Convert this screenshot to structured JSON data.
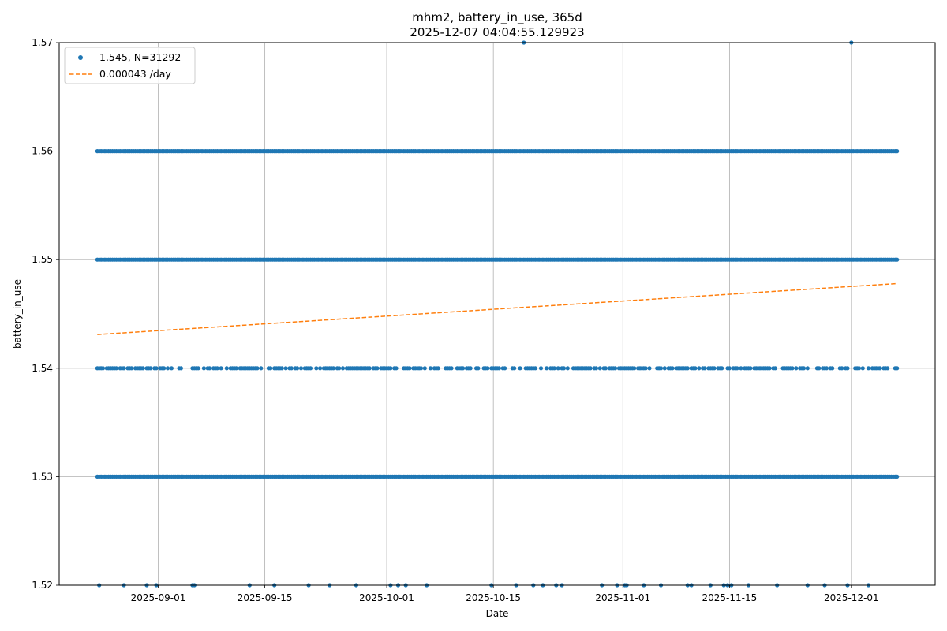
{
  "chart_data": {
    "type": "scatter",
    "title": "mhm2, battery_in_use, 365d",
    "subtitle": "2025-12-07 04:04:55.129923",
    "xlabel": "Date",
    "ylabel": "battery_in_use",
    "xlim": [
      "2025-08-19",
      "2025-12-12"
    ],
    "ylim": [
      1.52,
      1.57
    ],
    "x_ticks": [
      "2025-09-01",
      "2025-09-15",
      "2025-10-01",
      "2025-10-15",
      "2025-11-01",
      "2025-11-15",
      "2025-12-01"
    ],
    "y_ticks": [
      "1.52",
      "1.53",
      "1.54",
      "1.55",
      "1.56",
      "1.57"
    ],
    "grid": true,
    "legend_position": "top-left",
    "data_start": "2025-08-24",
    "data_end": "2025-12-07",
    "series": [
      {
        "name": "1.545, N=31292",
        "kind": "scatter",
        "color": "#1f77b4",
        "levels": [
          {
            "y": 1.53,
            "density": "continuous"
          },
          {
            "y": 1.55,
            "density": "continuous"
          },
          {
            "y": 1.56,
            "density": "continuous"
          },
          {
            "y": 1.54,
            "density": "frequent"
          },
          {
            "y": 1.52,
            "density": "sparse"
          }
        ],
        "outliers": [
          {
            "x": "2025-10-19",
            "y": 1.57
          },
          {
            "x": "2025-12-01",
            "y": 1.57
          }
        ]
      },
      {
        "name": "0.000043 /day",
        "kind": "line",
        "style": "dashed",
        "color": "#ff7f0e",
        "points": [
          {
            "x": "2025-08-24",
            "y": 1.5431
          },
          {
            "x": "2025-12-07",
            "y": 1.5478
          }
        ]
      }
    ]
  }
}
